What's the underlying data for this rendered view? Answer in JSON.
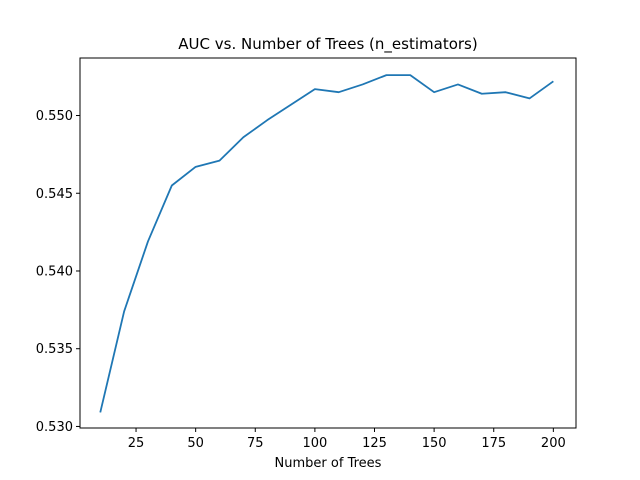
{
  "chart_data": {
    "type": "line",
    "title": "AUC vs. Number of Trees (n_estimators)",
    "xlabel": "Number of Trees",
    "ylabel": "",
    "xlim": [
      1.5,
      209.5
    ],
    "ylim": [
      0.5299,
      0.5537
    ],
    "xticks": [
      25,
      50,
      75,
      100,
      125,
      150,
      175,
      200
    ],
    "yticks": [
      0.53,
      0.535,
      0.54,
      0.545,
      0.55
    ],
    "ytick_labels": [
      "0.530",
      "0.535",
      "0.540",
      "0.545",
      "0.550"
    ],
    "grid": false,
    "legend": "none",
    "series": [
      {
        "color": "#1f77b4",
        "x": [
          10,
          20,
          30,
          40,
          50,
          60,
          70,
          80,
          90,
          100,
          110,
          120,
          130,
          140,
          150,
          160,
          170,
          180,
          190,
          200
        ],
        "y": [
          0.5309,
          0.5374,
          0.5419,
          0.5455,
          0.5467,
          0.5471,
          0.5486,
          0.5497,
          0.5507,
          0.5517,
          0.5515,
          0.552,
          0.5526,
          0.5526,
          0.5515,
          0.552,
          0.5514,
          0.5515,
          0.5511,
          0.5522
        ]
      }
    ]
  }
}
